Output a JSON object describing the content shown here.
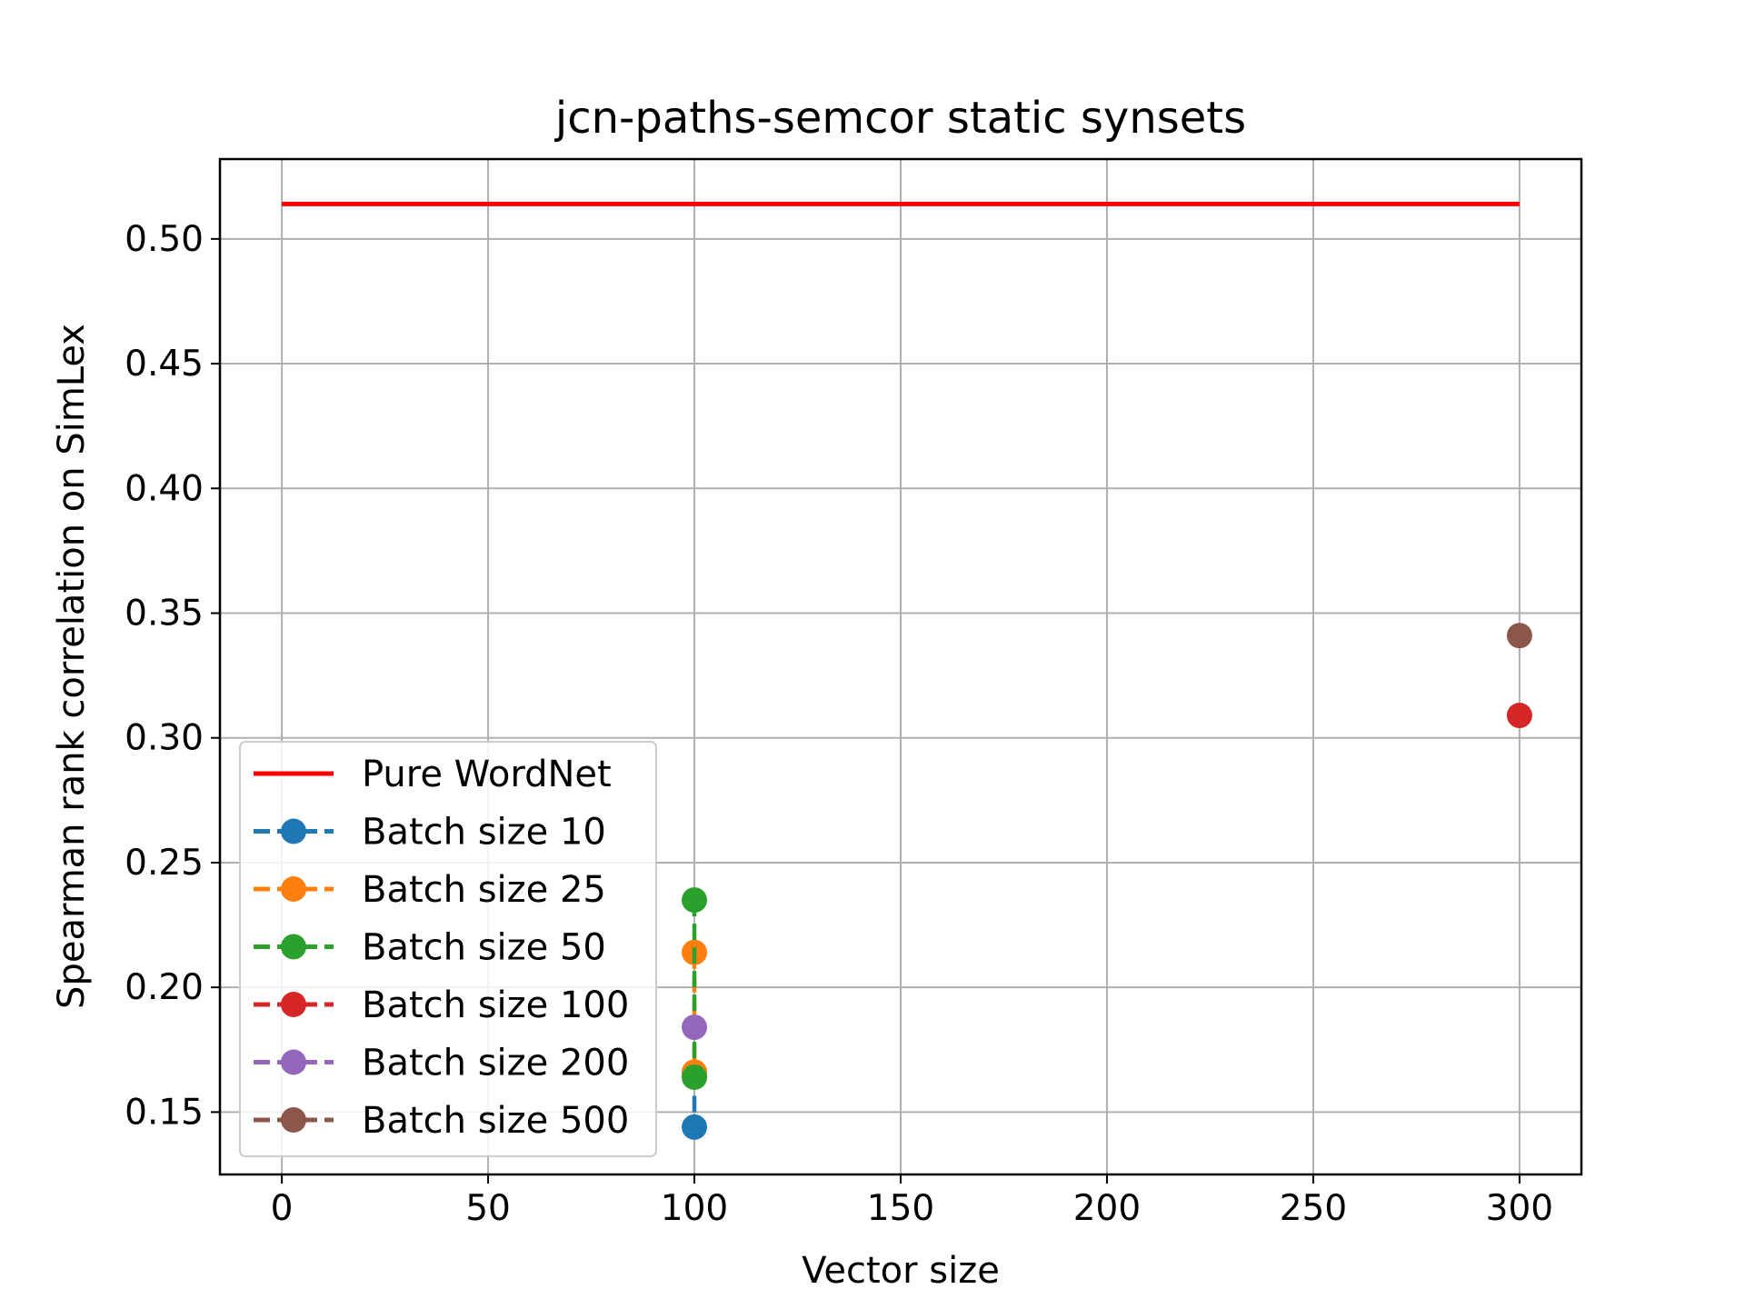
{
  "chart_data": {
    "type": "line",
    "title": "jcn-paths-semcor static synsets",
    "xlabel": "Vector size",
    "ylabel": "Spearman rank correlation on SimLex",
    "xlim": [
      -15,
      315
    ],
    "ylim": [
      0.125,
      0.532
    ],
    "xticks": [
      0,
      50,
      100,
      150,
      200,
      250,
      300
    ],
    "yticks": [
      0.15,
      0.2,
      0.25,
      0.3,
      0.35,
      0.4,
      0.45,
      0.5
    ],
    "grid": true,
    "legend_position": "lower-left",
    "series": [
      {
        "name": "Pure WordNet",
        "color": "#ff0000",
        "style": "solid",
        "marker": "none",
        "x": [
          0,
          300
        ],
        "y": [
          0.514,
          0.514
        ]
      },
      {
        "name": "Batch size 10",
        "color": "#1f77b4",
        "style": "dashed",
        "marker": "circle",
        "x": [
          100,
          100
        ],
        "y": [
          0.166,
          0.144
        ]
      },
      {
        "name": "Batch size 25",
        "color": "#ff7f0e",
        "style": "dashed",
        "marker": "circle",
        "x": [
          100,
          100
        ],
        "y": [
          0.214,
          0.166
        ]
      },
      {
        "name": "Batch size 50",
        "color": "#2ca02c",
        "style": "dashed",
        "marker": "circle",
        "x": [
          100,
          100
        ],
        "y": [
          0.235,
          0.164
        ]
      },
      {
        "name": "Batch size 100",
        "color": "#d62728",
        "style": "dashed",
        "marker": "circle",
        "x": [
          300
        ],
        "y": [
          0.309
        ]
      },
      {
        "name": "Batch size 200",
        "color": "#9467bd",
        "style": "dashed",
        "marker": "circle",
        "x": [
          100
        ],
        "y": [
          0.184
        ]
      },
      {
        "name": "Batch size 500",
        "color": "#8c564b",
        "style": "dashed",
        "marker": "circle",
        "x": [
          300
        ],
        "y": [
          0.341
        ]
      }
    ]
  }
}
